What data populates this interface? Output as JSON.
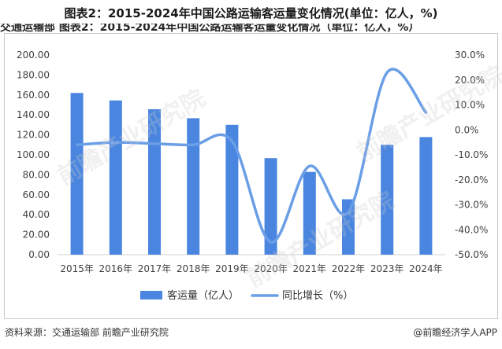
{
  "title": "图表2：2015-2024年中国公路运输客运量变化情况(单位：亿人，%)",
  "cut_text": "交通运输部  图表2：2015-2024年中国公路运输客运量变化情况（单位：亿人，%）",
  "source": "资料来源：交通运输部 前瞻产业研究院",
  "credit": "@前瞻经济学人APP",
  "watermark": "前瞻产业研究院",
  "colors": {
    "bar": "#4a86e0",
    "line": "#6a9ee6",
    "axis": "#d0d0d0"
  },
  "chart_data": {
    "type": "bar",
    "categories": [
      "2015年",
      "2016年",
      "2017年",
      "2018年",
      "2019年",
      "2020年",
      "2021年",
      "2022年",
      "2023年",
      "2024年"
    ],
    "series": [
      {
        "name": "客运量（亿人）",
        "type": "bar",
        "axis": "left",
        "values": [
          162,
          154.5,
          145.7,
          136.7,
          130.1,
          96.7,
          82.9,
          55.5,
          110.1,
          117.8
        ]
      },
      {
        "name": "同比增长（%）",
        "type": "line",
        "axis": "right",
        "values": [
          -6.0,
          -5.0,
          -5.5,
          -6.0,
          -4.5,
          -45.0,
          -14.5,
          -33.0,
          23.0,
          7.0
        ]
      }
    ],
    "y_left": {
      "min": 0,
      "max": 200,
      "step": 20,
      "ticks": [
        "0.00",
        "20.00",
        "40.00",
        "60.00",
        "80.00",
        "100.00",
        "120.00",
        "140.00",
        "160.00",
        "180.00",
        "200.00"
      ]
    },
    "y_right": {
      "min": -50,
      "max": 30,
      "step": 10,
      "ticks": [
        "-50.0%",
        "-40.0%",
        "-30.0%",
        "-20.0%",
        "-10.0%",
        "0.0%",
        "10.0%",
        "20.0%",
        "30.0%"
      ]
    },
    "legend_position": "bottom",
    "grid": false
  }
}
